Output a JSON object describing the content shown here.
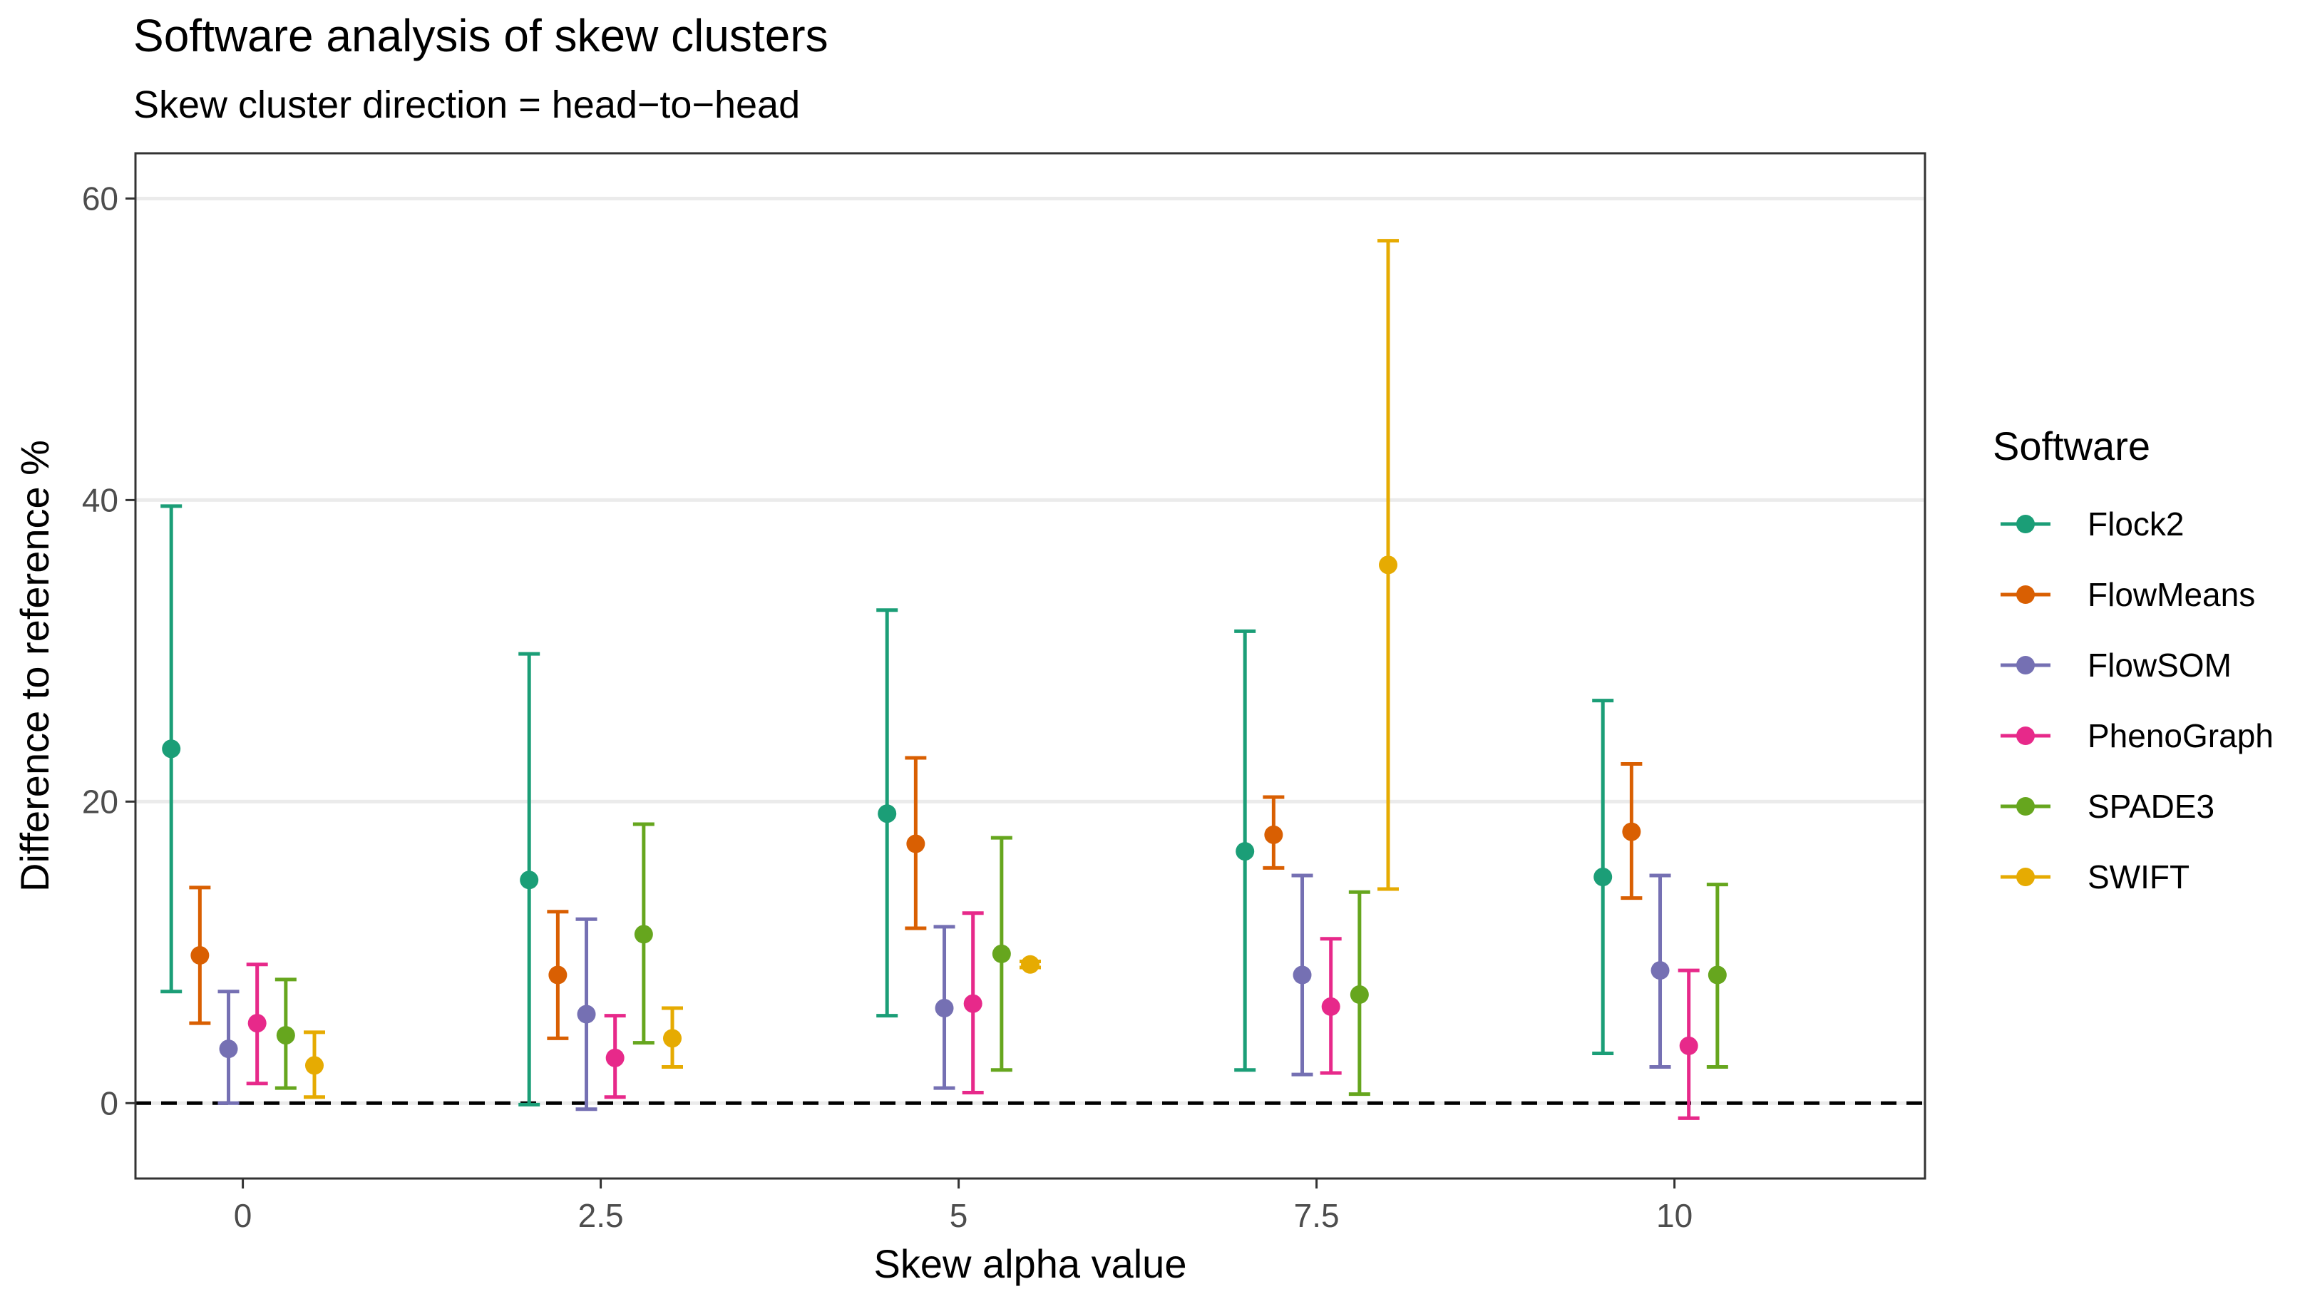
{
  "chart_data": {
    "type": "scatter",
    "title": "Software analysis of skew clusters",
    "subtitle": "Skew cluster direction = head−to−head",
    "xlabel": "Skew alpha value",
    "ylabel": "Difference to reference %",
    "x_ticks": [
      "0",
      "2.5",
      "5",
      "7.5",
      "10"
    ],
    "y_ticks": [
      "0",
      "20",
      "40",
      "60"
    ],
    "xlim": [
      -0.75,
      11.75
    ],
    "ylim": [
      -5,
      63
    ],
    "grid": "horizontal major",
    "reference_line": {
      "y": 0,
      "style": "dashed"
    },
    "legend": {
      "title": "Software",
      "placement": "right"
    },
    "series": [
      {
        "name": "Flock2",
        "color": "#1b9e77",
        "x": [
          -0.5,
          2,
          4.5,
          7,
          9.5
        ],
        "y": [
          23.5,
          14.8,
          19.2,
          16.7,
          15.0
        ],
        "lower": [
          7.4,
          -0.1,
          5.8,
          2.2,
          3.3
        ],
        "upper": [
          39.6,
          29.8,
          32.7,
          31.3,
          26.7
        ]
      },
      {
        "name": "FlowMeans",
        "color": "#d95f02",
        "x": [
          -0.3,
          2.2,
          4.7,
          7.2,
          9.7
        ],
        "y": [
          9.8,
          8.5,
          17.2,
          17.8,
          18.0
        ],
        "lower": [
          5.3,
          4.3,
          11.6,
          15.6,
          13.6
        ],
        "upper": [
          14.3,
          12.7,
          22.9,
          20.3,
          22.5
        ]
      },
      {
        "name": "FlowSOM",
        "color": "#7570b3",
        "x": [
          -0.1,
          2.4,
          4.9,
          7.4,
          9.9
        ],
        "y": [
          3.6,
          5.9,
          6.3,
          8.5,
          8.8
        ],
        "lower": [
          0.0,
          -0.4,
          1.0,
          1.9,
          2.4
        ],
        "upper": [
          7.4,
          12.2,
          11.7,
          15.1,
          15.1
        ]
      },
      {
        "name": "PhenoGraph",
        "color": "#e7298a",
        "x": [
          0.1,
          2.6,
          5.1,
          7.6,
          10.1
        ],
        "y": [
          5.3,
          3.0,
          6.6,
          6.4,
          3.8
        ],
        "lower": [
          1.3,
          0.4,
          0.7,
          2.0,
          -1.0
        ],
        "upper": [
          9.2,
          5.8,
          12.6,
          10.9,
          8.8
        ]
      },
      {
        "name": "SPADE3",
        "color": "#66a61e",
        "x": [
          0.3,
          2.8,
          5.3,
          7.8,
          10.3
        ],
        "y": [
          4.5,
          11.2,
          9.9,
          7.2,
          8.5
        ],
        "lower": [
          1.0,
          4.0,
          2.2,
          0.6,
          2.4
        ],
        "upper": [
          8.2,
          18.5,
          17.6,
          14.0,
          14.5
        ]
      },
      {
        "name": "SWIFT",
        "color": "#e6ab02",
        "x": [
          0.5,
          3.0,
          5.5,
          8.0
        ],
        "y": [
          2.5,
          4.3,
          9.2,
          35.7
        ],
        "lower": [
          0.4,
          2.4,
          9.0,
          14.2
        ],
        "upper": [
          4.7,
          6.3,
          9.4,
          57.2
        ]
      }
    ]
  }
}
